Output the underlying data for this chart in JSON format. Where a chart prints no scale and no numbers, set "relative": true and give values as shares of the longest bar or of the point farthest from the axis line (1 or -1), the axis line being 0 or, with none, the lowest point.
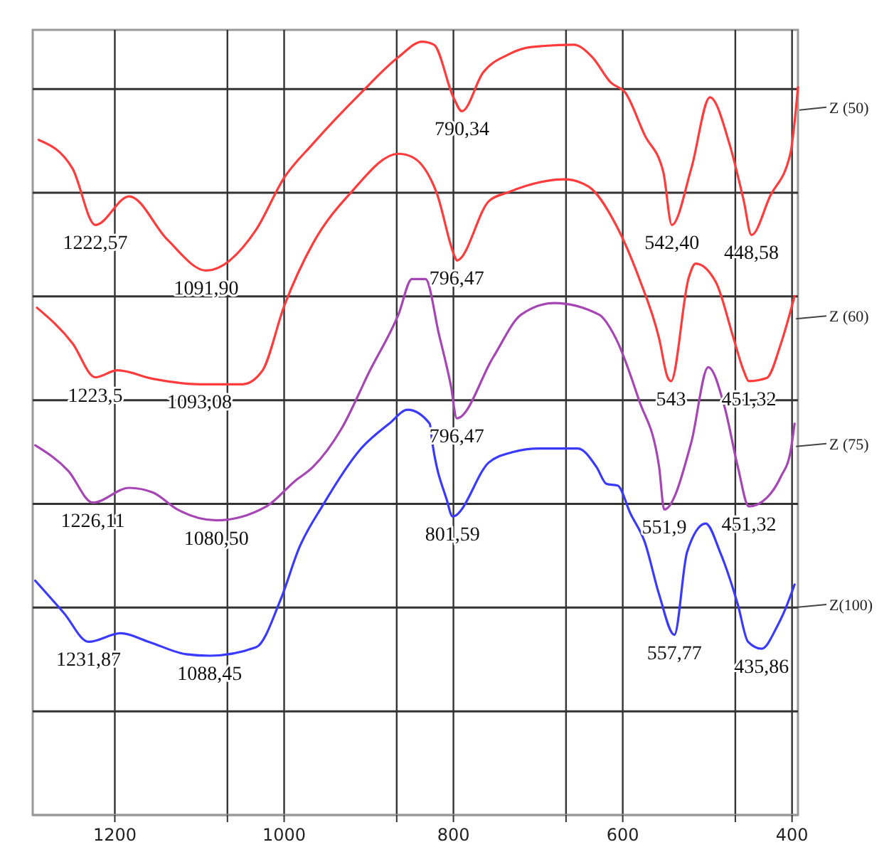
{
  "chart_data": {
    "type": "line",
    "relative": true,
    "grid": true,
    "legend": false,
    "marker": "none",
    "line_style": "solid",
    "xlim": [
      1297,
      393
    ],
    "xticks": [
      1200,
      {
        "value": 1067,
        "label": null
      },
      1000,
      {
        "value": 867,
        "label": null
      },
      800,
      {
        "value": 667,
        "label": null
      },
      600,
      {
        "value": 467,
        "label": null
      },
      400
    ],
    "series": [
      {
        "name": "Z (50)",
        "color": "#ff3b3b",
        "x": [
          1290,
          1250,
          1223,
          1183,
          1138,
          1092,
          1033,
          1000,
          966,
          909,
          865,
          837,
          823,
          800,
          790,
          765,
          736,
          708,
          658,
          636,
          614,
          597,
          574,
          552,
          542,
          519,
          497,
          474,
          457,
          448,
          426,
          402,
          393
        ],
        "values": [
          0.873,
          0.836,
          0.763,
          0.8,
          0.744,
          0.704,
          0.757,
          0.824,
          0.868,
          0.934,
          0.98,
          1.0,
          0.996,
          0.928,
          0.91,
          0.96,
          0.983,
          0.993,
          0.996,
          0.98,
          0.947,
          0.934,
          0.879,
          0.831,
          0.763,
          0.836,
          0.928,
          0.868,
          0.794,
          0.75,
          0.8,
          0.855,
          0.941
        ]
      },
      {
        "name": "Z (60)",
        "color": "#ff3b3b",
        "x": [
          1292,
          1250,
          1223,
          1197,
          1155,
          1100,
          1049,
          1026,
          1000,
          966,
          921,
          865,
          849,
          820,
          798,
          796,
          758,
          736,
          669,
          641,
          608,
          581,
          557,
          547,
          543,
          522,
          514,
          490,
          469,
          457,
          451,
          430,
          413,
          397
        ],
        "values": [
          0.656,
          0.61,
          0.566,
          0.575,
          0.564,
          0.557,
          0.557,
          0.574,
          0.658,
          0.739,
          0.805,
          0.855,
          0.851,
          0.805,
          0.721,
          0.717,
          0.794,
          0.805,
          0.822,
          0.813,
          0.763,
          0.695,
          0.616,
          0.566,
          0.561,
          0.695,
          0.713,
          0.689,
          0.616,
          0.574,
          0.561,
          0.565,
          0.61,
          0.671
        ]
      },
      {
        "name": "Z (75)",
        "color": "#a646b4",
        "x": [
          1294,
          1255,
          1226,
          1183,
          1155,
          1126,
          1080,
          1021,
          987,
          966,
          932,
          899,
          865,
          849,
          833,
          817,
          803,
          796,
          753,
          720,
          681,
          628,
          608,
          581,
          557,
          551,
          519,
          499,
          480,
          464,
          451,
          430,
          413,
          402,
          397
        ],
        "values": [
          0.478,
          0.445,
          0.404,
          0.423,
          0.417,
          0.395,
          0.381,
          0.399,
          0.432,
          0.45,
          0.5,
          0.574,
          0.647,
          0.693,
          0.693,
          0.621,
          0.555,
          0.513,
          0.592,
          0.647,
          0.662,
          0.647,
          0.616,
          0.537,
          0.45,
          0.395,
          0.482,
          0.579,
          0.529,
          0.45,
          0.399,
          0.41,
          0.438,
          0.469,
          0.506
        ]
      },
      {
        "name": "Z(100)",
        "color": "#3a3aff",
        "x": [
          1294,
          1260,
          1231,
          1193,
          1160,
          1116,
          1088,
          1033,
          1004,
          982,
          954,
          909,
          876,
          854,
          828,
          825,
          808,
          801,
          758,
          731,
          698,
          653,
          631,
          619,
          606,
          591,
          574,
          557,
          539,
          524,
          502,
          485,
          464,
          452,
          436,
          418,
          410,
          397
        ],
        "values": [
          0.303,
          0.261,
          0.224,
          0.235,
          0.224,
          0.208,
          0.206,
          0.217,
          0.279,
          0.346,
          0.401,
          0.474,
          0.506,
          0.524,
          0.506,
          0.482,
          0.408,
          0.386,
          0.456,
          0.469,
          0.474,
          0.474,
          0.45,
          0.428,
          0.426,
          0.39,
          0.353,
          0.285,
          0.233,
          0.34,
          0.377,
          0.34,
          0.272,
          0.224,
          0.215,
          0.243,
          0.261,
          0.298
        ]
      }
    ],
    "annotations": [
      {
        "text": "1222,57",
        "x": 1223,
        "y": 0.763
      },
      {
        "text": "1091,90",
        "x": 1092,
        "y": 0.704
      },
      {
        "text": "790,34",
        "x": 790,
        "y": 0.91
      },
      {
        "text": "542,40",
        "x": 542,
        "y": 0.763
      },
      {
        "text": "448,58",
        "x": 448,
        "y": 0.75
      },
      {
        "text": "1223,5",
        "x": 1223,
        "y": 0.566
      },
      {
        "text": "1093,08",
        "x": 1100,
        "y": 0.557
      },
      {
        "text": "796,47",
        "x": 796,
        "y": 0.717
      },
      {
        "text": "543",
        "x": 543,
        "y": 0.561
      },
      {
        "text": "451,32",
        "x": 451,
        "y": 0.561
      },
      {
        "text": "1226,11",
        "x": 1226,
        "y": 0.404
      },
      {
        "text": "1080,50",
        "x": 1080,
        "y": 0.381
      },
      {
        "text": "796,47",
        "x": 796,
        "y": 0.513
      },
      {
        "text": "551,9",
        "x": 551,
        "y": 0.395
      },
      {
        "text": "451,32",
        "x": 451,
        "y": 0.399
      },
      {
        "text": "1231,87",
        "x": 1231,
        "y": 0.224
      },
      {
        "text": "1088,45",
        "x": 1088,
        "y": 0.206
      },
      {
        "text": "801,59",
        "x": 801,
        "y": 0.386
      },
      {
        "text": "557,77",
        "x": 539,
        "y": 0.233
      },
      {
        "text": "435,86",
        "x": 436,
        "y": 0.215
      }
    ]
  }
}
